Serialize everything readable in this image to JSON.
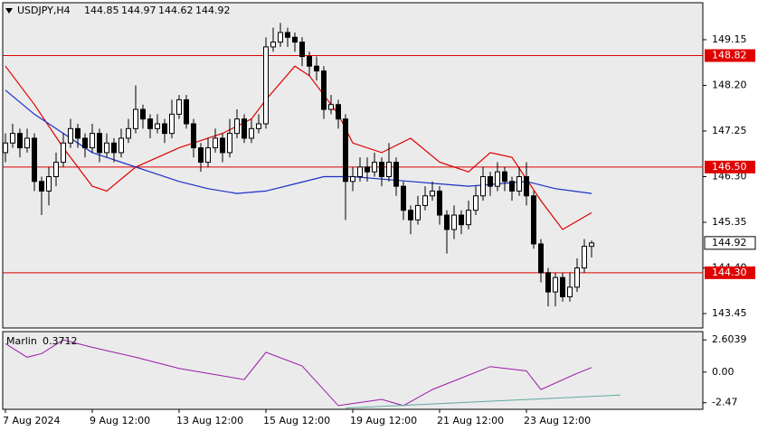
{
  "chart_data": {
    "type": "candlestick",
    "symbol": "USDJPY,H4",
    "xlim": [
      -0.375,
      96.375
    ],
    "xticks": [
      {
        "value": 0,
        "label": "7 Aug 2024"
      },
      {
        "value": 12,
        "label": "9 Aug 12:00"
      },
      {
        "value": 24,
        "label": "13 Aug 12:00"
      },
      {
        "value": 36,
        "label": "15 Aug 12:00"
      },
      {
        "value": 48,
        "label": "19 Aug 12:00"
      },
      {
        "value": 60,
        "label": "21 Aug 12:00"
      },
      {
        "value": 72,
        "label": "23 Aug 12:00"
      }
    ],
    "ylim": [
      143.15,
      149.92
    ],
    "yticks": [
      149.15,
      {
        "value": 148.2,
        "label": "148.20"
      },
      147.25,
      {
        "value": 146.3,
        "label": "146.30"
      },
      145.35,
      {
        "value": 144.4,
        "label": "144.40"
      },
      143.45
    ],
    "up_color": "#ffffff",
    "down_color": "#000000",
    "open": [
      146.8,
      147.0,
      147.2,
      146.9,
      147.1,
      146.2,
      146.0,
      146.3,
      146.6,
      147.0,
      147.3,
      147.1,
      146.9,
      147.2,
      146.8,
      147.0,
      146.8,
      147.1,
      147.3,
      147.7,
      147.5,
      147.3,
      147.4,
      147.2,
      147.6,
      147.9,
      147.4,
      146.9,
      146.6,
      146.9,
      147.1,
      146.8,
      147.2,
      147.5,
      147.1,
      147.3,
      147.4,
      149.0,
      149.1,
      149.3,
      149.2,
      149.1,
      148.8,
      148.6,
      148.5,
      147.7,
      147.8,
      147.5,
      146.2,
      146.3,
      146.5,
      146.4,
      146.6,
      146.3,
      146.6,
      146.1,
      145.6,
      145.4,
      145.7,
      145.9,
      146.0,
      145.5,
      145.2,
      145.5,
      145.3,
      145.6,
      145.9,
      146.3,
      146.1,
      146.4,
      146.2,
      146.0,
      146.3,
      145.9,
      144.9,
      144.3,
      143.9,
      144.2,
      143.8,
      144.0,
      144.4,
      144.85
    ],
    "high": [
      147.2,
      147.4,
      147.3,
      147.3,
      147.2,
      146.3,
      146.5,
      146.8,
      147.2,
      147.5,
      147.4,
      147.2,
      147.4,
      147.3,
      147.2,
      147.1,
      147.3,
      147.5,
      148.2,
      147.8,
      147.6,
      147.6,
      147.5,
      147.9,
      148.0,
      148.0,
      147.5,
      147.0,
      147.1,
      147.3,
      147.2,
      147.5,
      147.7,
      147.6,
      147.5,
      147.6,
      149.2,
      149.4,
      149.5,
      149.4,
      149.3,
      149.2,
      148.9,
      148.8,
      148.6,
      148.0,
      147.9,
      147.6,
      146.5,
      146.7,
      146.7,
      146.8,
      146.7,
      147.0,
      146.7,
      146.2,
      145.7,
      145.9,
      146.1,
      146.2,
      146.1,
      145.6,
      145.7,
      145.6,
      145.8,
      146.1,
      146.5,
      146.4,
      146.6,
      146.5,
      146.3,
      146.5,
      146.6,
      146.0,
      145.0,
      144.4,
      144.3,
      144.3,
      144.3,
      144.6,
      145.0,
      144.97
    ],
    "low": [
      146.6,
      146.9,
      146.7,
      146.8,
      146.0,
      145.5,
      145.7,
      146.1,
      146.5,
      146.9,
      146.9,
      146.7,
      146.8,
      146.6,
      146.7,
      146.6,
      146.7,
      147.0,
      147.2,
      147.3,
      147.1,
      147.2,
      147.0,
      147.1,
      147.5,
      147.3,
      146.7,
      146.4,
      146.5,
      146.8,
      146.6,
      146.7,
      147.1,
      147.0,
      147.0,
      147.2,
      147.3,
      148.9,
      149.0,
      149.0,
      148.9,
      148.6,
      148.4,
      148.3,
      147.5,
      147.6,
      147.3,
      145.4,
      146.0,
      146.2,
      146.2,
      146.3,
      146.1,
      146.2,
      145.9,
      145.4,
      145.1,
      145.3,
      145.6,
      145.8,
      145.3,
      144.7,
      145.0,
      145.1,
      145.2,
      145.5,
      145.8,
      145.9,
      146.0,
      146.0,
      145.8,
      145.9,
      145.7,
      144.8,
      144.1,
      143.6,
      143.6,
      143.7,
      143.7,
      143.9,
      144.3,
      144.62
    ],
    "close": [
      147.0,
      147.2,
      146.9,
      147.1,
      146.2,
      146.0,
      146.3,
      146.6,
      147.0,
      147.3,
      147.1,
      146.9,
      147.2,
      146.8,
      147.0,
      146.8,
      147.1,
      147.3,
      147.7,
      147.5,
      147.3,
      147.4,
      147.2,
      147.6,
      147.9,
      147.4,
      146.9,
      146.6,
      146.9,
      147.1,
      146.8,
      147.2,
      147.5,
      147.1,
      147.3,
      147.4,
      149.0,
      149.1,
      149.3,
      149.2,
      149.1,
      148.8,
      148.6,
      148.5,
      147.7,
      147.8,
      147.5,
      146.2,
      146.3,
      146.5,
      146.4,
      146.6,
      146.3,
      146.6,
      146.1,
      145.6,
      145.4,
      145.7,
      145.9,
      146.0,
      145.5,
      145.2,
      145.5,
      145.3,
      145.6,
      145.9,
      146.3,
      146.1,
      146.4,
      146.2,
      146.0,
      146.3,
      145.9,
      144.9,
      144.3,
      143.9,
      144.2,
      143.8,
      144.0,
      144.4,
      144.85,
      144.92
    ],
    "moving_averages": [
      {
        "color": "#e00000",
        "x": [
          0,
          4,
          8,
          12,
          14,
          18,
          24,
          30,
          34,
          36,
          40,
          42,
          46,
          48,
          52,
          56,
          60,
          64,
          67,
          70,
          74,
          77,
          81
        ],
        "values": [
          148.6,
          147.8,
          146.9,
          146.1,
          146.0,
          146.5,
          146.9,
          147.2,
          147.5,
          147.9,
          148.6,
          148.4,
          147.6,
          147.0,
          146.8,
          147.1,
          146.6,
          146.4,
          146.8,
          146.7,
          145.8,
          145.2,
          145.55
        ]
      },
      {
        "color": "#1c2fc8",
        "x": [
          0,
          4,
          8,
          12,
          16,
          20,
          24,
          28,
          32,
          36,
          40,
          44,
          48,
          52,
          56,
          60,
          64,
          68,
          72,
          76,
          81
        ],
        "values": [
          148.1,
          147.6,
          147.2,
          146.8,
          146.6,
          146.4,
          146.2,
          146.05,
          145.95,
          146.0,
          146.15,
          146.3,
          146.3,
          146.25,
          146.2,
          146.15,
          146.1,
          146.15,
          146.2,
          146.05,
          145.95
        ]
      }
    ],
    "levels": [
      {
        "value": 148.82,
        "color": "#e00000"
      },
      {
        "value": 146.5,
        "label": "146.50",
        "color": "#e00000"
      },
      {
        "value": 144.3,
        "label": "144.30",
        "color": "#e00000"
      }
    ],
    "indicator": {
      "name": "Marlin",
      "color": "#9a1aa8",
      "ylim": [
        -3.0,
        3.27
      ],
      "yticks": [
        2.6039,
        {
          "value": 0,
          "label": "0.00"
        },
        -2.47
      ],
      "x": [
        0,
        3,
        5,
        8,
        12,
        18,
        24,
        29,
        33,
        36,
        41,
        46,
        52,
        55,
        59,
        67,
        72,
        74,
        79,
        81
      ],
      "values": [
        2.3,
        1.2,
        1.5,
        2.6,
        2.0,
        1.2,
        0.3,
        -0.2,
        -0.6,
        1.6,
        0.5,
        -2.7,
        -2.2,
        -2.7,
        -1.4,
        0.45,
        0.1,
        -1.4,
        -0.1,
        0.3712
      ],
      "trendline": {
        "color": "#5fa8a0",
        "x": [
          47,
          85
        ],
        "values": [
          -2.9,
          -1.85
        ]
      }
    }
  }
}
